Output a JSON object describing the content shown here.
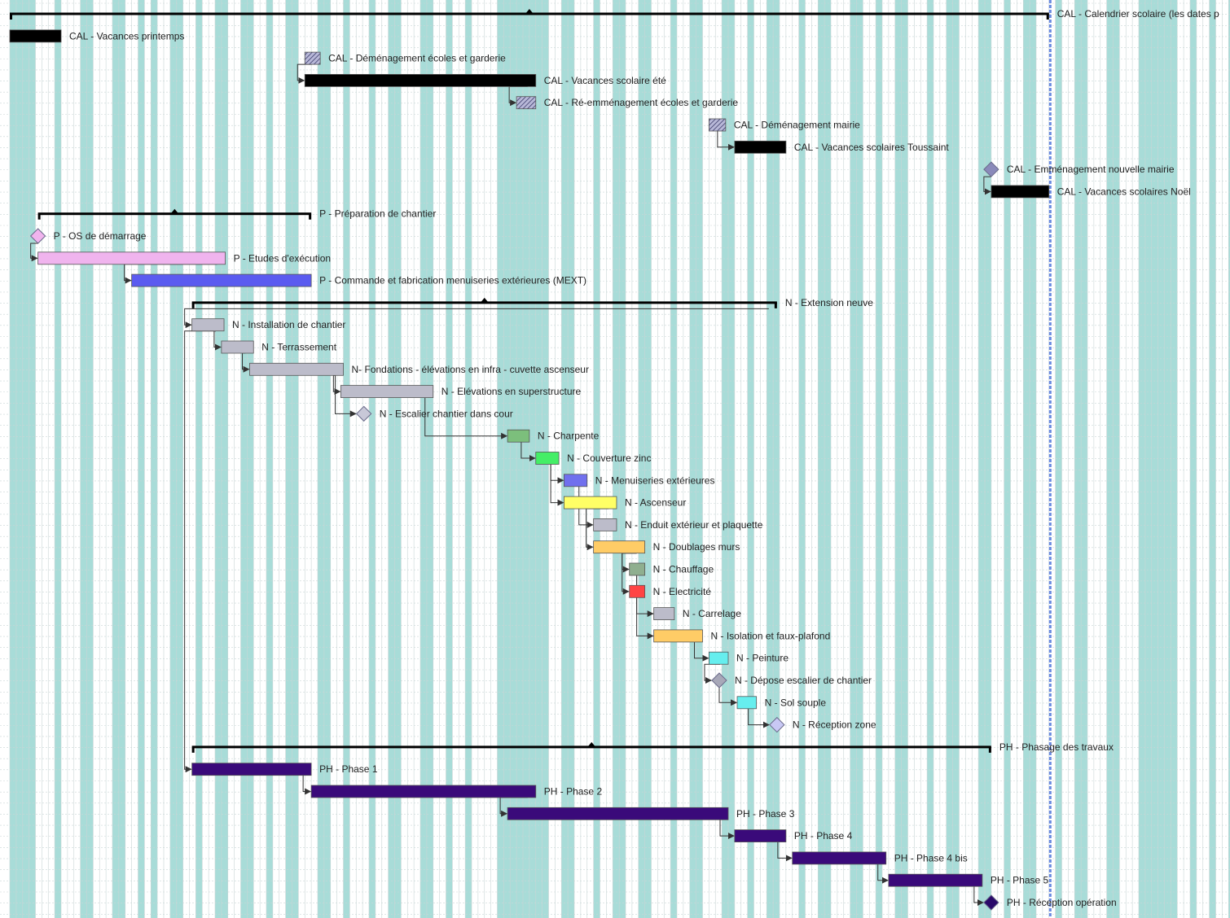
{
  "chart_data": {
    "type": "gantt",
    "title": "",
    "x_units": "week",
    "x_range": [
      0,
      96
    ],
    "colors": {
      "calendar": "#000000",
      "prep_light": "#f0b4ee",
      "prep_blue": "#5b5bf0",
      "task_gray": "#bcbcca",
      "charpente": "#7cbf7c",
      "couverture": "#44ee66",
      "menuiseries": "#7070ee",
      "ascenseur": "#ffff66",
      "doublages": "#ffcc66",
      "chauffage": "#8faf8f",
      "electricite": "#ff4444",
      "isolation": "#ffcc66",
      "peinture": "#66eeee",
      "sol": "#66eeee",
      "phase": "#3a0a7a",
      "summary": "#000000",
      "milestone": "#c8c8f4",
      "shade": "#a8dcd8"
    },
    "non_working_bands": [
      [
        0,
        2
      ],
      [
        3.5,
        4
      ],
      [
        5.5,
        6.5
      ],
      [
        8,
        9
      ],
      [
        10,
        10.5
      ],
      [
        11,
        11.5
      ],
      [
        12.5,
        13.5
      ],
      [
        14.5,
        15
      ],
      [
        16,
        17
      ],
      [
        18,
        19
      ],
      [
        20,
        20.5
      ],
      [
        21.5,
        22.5
      ],
      [
        24,
        25
      ],
      [
        26,
        26.5
      ],
      [
        28,
        28.5
      ],
      [
        29.5,
        30.5
      ],
      [
        32,
        33
      ],
      [
        34,
        34.5
      ],
      [
        35.5,
        36
      ],
      [
        38,
        42
      ],
      [
        43,
        44
      ],
      [
        45.5,
        46
      ],
      [
        47,
        48
      ],
      [
        49,
        50
      ],
      [
        51.5,
        52
      ],
      [
        53,
        54
      ],
      [
        55.5,
        56.5
      ],
      [
        57.5,
        58
      ],
      [
        59,
        60
      ],
      [
        61.5,
        62
      ],
      [
        63,
        64
      ],
      [
        65.5,
        66.5
      ],
      [
        67.5,
        68
      ],
      [
        69,
        70
      ],
      [
        71.5,
        72
      ],
      [
        73,
        74
      ],
      [
        75.5,
        76.5
      ],
      [
        77.5,
        78
      ],
      [
        79,
        80
      ],
      [
        81.5,
        82
      ],
      [
        83,
        84
      ],
      [
        85.5,
        86.5
      ],
      [
        88,
        91
      ],
      [
        92,
        92.5
      ],
      [
        93.5,
        94
      ],
      [
        95,
        96
      ]
    ],
    "tasks": [
      {
        "name": "CAL - Calendrier scolaire (les dates p",
        "kind": "summary",
        "start": 0,
        "end": 81
      },
      {
        "name": "CAL - Vacances printemps",
        "kind": "bar",
        "start": 0,
        "end": 4,
        "color": "#000000"
      },
      {
        "name": "CAL - Déménagement écoles et garderie",
        "kind": "hatch",
        "start": 23,
        "end": 24.2,
        "color": "#8a8aba"
      },
      {
        "name": "CAL - Vacances scolaire été",
        "kind": "bar",
        "start": 23,
        "end": 41,
        "color": "#000000"
      },
      {
        "name": "CAL - Ré-emménagement écoles et garderie",
        "kind": "hatch",
        "start": 39.5,
        "end": 41,
        "color": "#8a8aba"
      },
      {
        "name": "CAL - Déménagement mairie",
        "kind": "hatch",
        "start": 54.5,
        "end": 55.8,
        "color": "#8a8aba"
      },
      {
        "name": "CAL - Vacances scolaires Toussaint",
        "kind": "bar",
        "start": 56.5,
        "end": 60.5,
        "color": "#000000"
      },
      {
        "name": "CAL - Emménagement nouvelle mairie",
        "kind": "milestone",
        "start": 76.5,
        "end": 76.5,
        "color": "#8a8aba"
      },
      {
        "name": "CAL - Vacances scolaires Noël",
        "kind": "bar",
        "start": 76.5,
        "end": 81,
        "color": "#000000"
      },
      {
        "name": "P - Préparation de chantier",
        "kind": "summary",
        "start": 2.2,
        "end": 23.5
      },
      {
        "name": "P - OS de démarrage",
        "kind": "milestone",
        "start": 2.2,
        "end": 2.2,
        "color": "#f0b4ee"
      },
      {
        "name": "P - Etudes d'exécution",
        "kind": "bar",
        "start": 2.2,
        "end": 16.8,
        "color": "#f0b4ee"
      },
      {
        "name": "P - Commande et fabrication menuiseries extérieures (MEXT)",
        "kind": "bar",
        "start": 9.5,
        "end": 23.5,
        "color": "#5b5bf0"
      },
      {
        "name": "N - Extension neuve",
        "kind": "summary",
        "start": 14.2,
        "end": 59.8
      },
      {
        "name": "N - Installation de chantier",
        "kind": "bar",
        "start": 14.2,
        "end": 16.7,
        "color": "#bcbcca"
      },
      {
        "name": "N - Terrassement",
        "kind": "bar",
        "start": 16.5,
        "end": 19,
        "color": "#bcbcca"
      },
      {
        "name": "N- Fondations - élévations en infra - cuvette ascenseur",
        "kind": "bar",
        "start": 18.7,
        "end": 26,
        "color": "#bcbcca"
      },
      {
        "name": "N - Elévations en superstructure",
        "kind": "bar",
        "start": 25.8,
        "end": 33,
        "color": "#bcbcca"
      },
      {
        "name": "N - Escalier chantier dans cour",
        "kind": "milestone",
        "start": 27.6,
        "end": 27.6,
        "color": "#c8c8d8"
      },
      {
        "name": "N - Charpente",
        "kind": "bar",
        "start": 38.8,
        "end": 40.5,
        "color": "#7cbf7c"
      },
      {
        "name": "N - Couverture zinc",
        "kind": "bar",
        "start": 41,
        "end": 42.8,
        "color": "#44ee66"
      },
      {
        "name": "N - Menuiseries extérieures",
        "kind": "bar",
        "start": 43.2,
        "end": 45,
        "color": "#7070ee"
      },
      {
        "name": "N - Ascenseur",
        "kind": "bar",
        "start": 43.2,
        "end": 47.3,
        "color": "#ffff66"
      },
      {
        "name": "N - Enduit extérieur et plaquette",
        "kind": "bar",
        "start": 45.5,
        "end": 47.3,
        "color": "#bcbcca"
      },
      {
        "name": "N - Doublages murs",
        "kind": "bar",
        "start": 45.5,
        "end": 49.5,
        "color": "#ffcc66"
      },
      {
        "name": "N - Chauffage",
        "kind": "bar",
        "start": 48.3,
        "end": 49.5,
        "color": "#8faf8f"
      },
      {
        "name": "N - Electricité",
        "kind": "bar",
        "start": 48.3,
        "end": 49.5,
        "color": "#ff4444"
      },
      {
        "name": "N - Carrelage",
        "kind": "bar",
        "start": 50.2,
        "end": 51.8,
        "color": "#bcbcca"
      },
      {
        "name": "N - Isolation et faux-plafond",
        "kind": "bar",
        "start": 50.2,
        "end": 54,
        "color": "#ffcc66"
      },
      {
        "name": "N - Peinture",
        "kind": "bar",
        "start": 54.5,
        "end": 56,
        "color": "#66eeee"
      },
      {
        "name": "N - Dépose escalier de chantier",
        "kind": "milestone",
        "start": 55.3,
        "end": 55.3,
        "color": "#a8a8b8"
      },
      {
        "name": "N - Sol souple",
        "kind": "bar",
        "start": 56.7,
        "end": 58.2,
        "color": "#66eeee"
      },
      {
        "name": "N - Réception zone",
        "kind": "milestone",
        "start": 59.8,
        "end": 59.8,
        "color": "#c8c8f4"
      },
      {
        "name": "PH - Phasage des travaux",
        "kind": "summary",
        "start": 14.2,
        "end": 76.5
      },
      {
        "name": "PH - Phase 1",
        "kind": "bar",
        "start": 14.2,
        "end": 23.5,
        "color": "#3a0a7a"
      },
      {
        "name": "PH - Phase 2",
        "kind": "bar",
        "start": 23.5,
        "end": 41,
        "color": "#3a0a7a"
      },
      {
        "name": "PH - Phase 3",
        "kind": "bar",
        "start": 38.8,
        "end": 56,
        "color": "#3a0a7a"
      },
      {
        "name": "PH - Phase 4",
        "kind": "bar",
        "start": 56.5,
        "end": 60.5,
        "color": "#3a0a7a"
      },
      {
        "name": "PH - Phase 4 bis",
        "kind": "bar",
        "start": 61,
        "end": 68.3,
        "color": "#3a0a7a"
      },
      {
        "name": "PH - Phase 5",
        "kind": "bar",
        "start": 68.5,
        "end": 75.8,
        "color": "#3a0a7a"
      },
      {
        "name": "PH - Réception opération",
        "kind": "milestone",
        "start": 76.5,
        "end": 76.5,
        "color": "#2a0a6a"
      }
    ],
    "links": [
      [
        2,
        3
      ],
      [
        3,
        4
      ],
      [
        5,
        6
      ],
      [
        7,
        8
      ],
      [
        10,
        11
      ],
      [
        11,
        12
      ],
      [
        13,
        14
      ],
      [
        14,
        15
      ],
      [
        15,
        16
      ],
      [
        16,
        17
      ],
      [
        16,
        18
      ],
      [
        17,
        19
      ],
      [
        19,
        20
      ],
      [
        20,
        21
      ],
      [
        20,
        22
      ],
      [
        21,
        23
      ],
      [
        22,
        24
      ],
      [
        24,
        25
      ],
      [
        24,
        26
      ],
      [
        25,
        27
      ],
      [
        25,
        28
      ],
      [
        28,
        29
      ],
      [
        29,
        30
      ],
      [
        30,
        31
      ],
      [
        31,
        32
      ],
      [
        14,
        34
      ],
      [
        34,
        35
      ],
      [
        35,
        36
      ],
      [
        36,
        37
      ],
      [
        37,
        38
      ],
      [
        38,
        39
      ],
      [
        39,
        40
      ]
    ]
  }
}
